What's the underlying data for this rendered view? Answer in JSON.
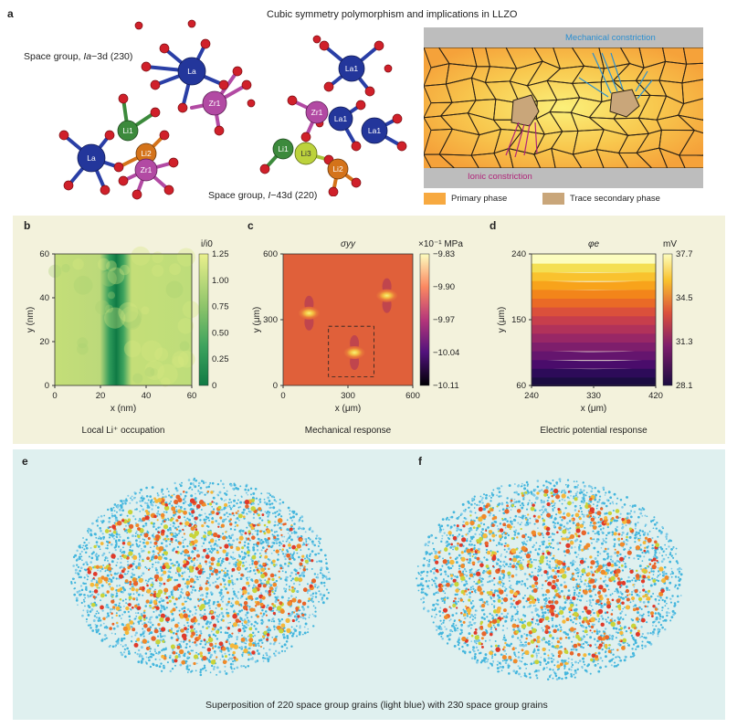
{
  "panel_a": {
    "letter": "a",
    "title": "Cubic symmetry polymorphism and implications in LLZO",
    "space_group_1_prefix": "Space group, ",
    "space_group_1_symbol": "Ia",
    "space_group_1_suffix": "−3d (230)",
    "space_group_2_prefix": "Space group, ",
    "space_group_2_symbol": "I",
    "space_group_2_suffix": "−43d (220)",
    "atoms_left": [
      "La",
      "Zr1",
      "Li1",
      "Li2",
      "La",
      "Zr1"
    ],
    "atoms_right": [
      "La1",
      "Zr1",
      "La1",
      "La1",
      "Li1",
      "Li3",
      "Li2"
    ],
    "mechanical_constriction": "Mechanical constriction",
    "ionic_constriction": "Ionic constriction",
    "legend_primary": "Primary phase",
    "legend_secondary": "Trace secondary phase",
    "colors": {
      "primary": "#f7a940",
      "secondary": "#c9a67a",
      "mech": "#2b8fd1",
      "ionic": "#b0257a"
    }
  },
  "chart_data": [
    {
      "type": "heatmap",
      "panel": "b",
      "title": "",
      "xlabel": "x (nm)",
      "ylabel": "y (nm)",
      "xlim": [
        0,
        60
      ],
      "ylim": [
        0,
        60
      ],
      "xticks": [
        "0",
        "20",
        "40",
        "60"
      ],
      "yticks": [
        "0",
        "20",
        "40",
        "60"
      ],
      "colorbar_label": "i/i0",
      "colorbar_ticks": [
        "1.25",
        "1.00",
        "0.75",
        "0.50",
        "0.25",
        "0"
      ],
      "colorbar_range": [
        0,
        1.25
      ],
      "caption": "Local Li⁺ occupation",
      "features": [
        {
          "kind": "vertical_band",
          "x_center": 27,
          "value": 0.25
        }
      ]
    },
    {
      "type": "heatmap",
      "panel": "c",
      "title": "σyy",
      "xlabel": "x (μm)",
      "ylabel": "y (μm)",
      "xlim": [
        0,
        600
      ],
      "ylim": [
        0,
        600
      ],
      "xticks": [
        "0",
        "300",
        "600"
      ],
      "yticks": [
        "0",
        "300",
        "600"
      ],
      "colorbar_label": "×10⁻¹ MPa",
      "colorbar_ticks": [
        "−9.83",
        "−9.90",
        "−9.97",
        "−10.04",
        "−10.11"
      ],
      "colorbar_range": [
        -10.11,
        -9.83
      ],
      "caption": "Mechanical response",
      "hotspots": [
        {
          "x": 120,
          "y": 330
        },
        {
          "x": 480,
          "y": 410
        },
        {
          "x": 330,
          "y": 150
        }
      ],
      "dashed_box": {
        "x0": 210,
        "x1": 420,
        "y0": 40,
        "y1": 270
      }
    },
    {
      "type": "heatmap",
      "panel": "d",
      "title": "φe",
      "xlabel": "x (μm)",
      "ylabel": "y (μm)",
      "xlim": [
        240,
        420
      ],
      "ylim": [
        60,
        240
      ],
      "xticks": [
        "240",
        "330",
        "420"
      ],
      "yticks": [
        "60",
        "150",
        "240"
      ],
      "colorbar_label": "mV",
      "colorbar_ticks": [
        "37.7",
        "34.5",
        "31.3",
        "28.1"
      ],
      "colorbar_range": [
        28.1,
        37.7
      ],
      "caption": "Electric potential response"
    }
  ],
  "panel_e": {
    "letter": "e"
  },
  "panel_f": {
    "letter": "f"
  },
  "panel_ef_caption": "Superposition of 220 space group grains (light blue) with 230 space group grains"
}
